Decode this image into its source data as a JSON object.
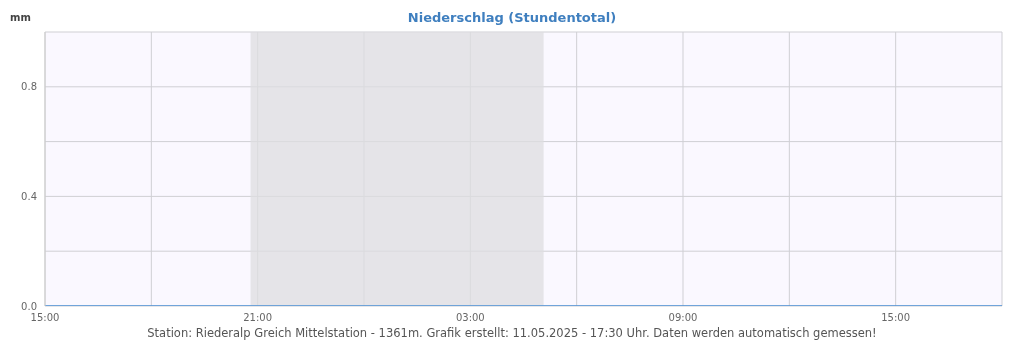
{
  "chart_data": {
    "type": "line",
    "title": "Niederschlag (Stundentotal)",
    "ylabel": "mm",
    "x": [
      "2025-05-10T15:00",
      "2025-05-10T16:00",
      "2025-05-10T17:00",
      "2025-05-10T18:00",
      "2025-05-10T19:00",
      "2025-05-10T20:00",
      "2025-05-10T21:00",
      "2025-05-10T22:00",
      "2025-05-10T23:00",
      "2025-05-11T00:00",
      "2025-05-11T01:00",
      "2025-05-11T02:00",
      "2025-05-11T03:00",
      "2025-05-11T04:00",
      "2025-05-11T05:00",
      "2025-05-11T06:00",
      "2025-05-11T07:00",
      "2025-05-11T08:00",
      "2025-05-11T09:00",
      "2025-05-11T10:00",
      "2025-05-11T11:00",
      "2025-05-11T12:00",
      "2025-05-11T13:00",
      "2025-05-11T14:00",
      "2025-05-11T15:00",
      "2025-05-11T16:00",
      "2025-05-11T17:00",
      "2025-05-11T18:00"
    ],
    "series": [
      {
        "color": "#4a8fd4",
        "values": [
          0,
          0,
          0,
          0,
          0,
          0,
          0,
          0,
          0,
          0,
          0,
          0,
          0,
          0,
          0,
          0,
          0,
          0,
          0,
          0,
          0,
          0,
          0,
          0,
          0,
          0,
          0,
          0
        ]
      }
    ],
    "xlim": [
      "2025-05-10T15:00",
      "2025-05-11T18:00"
    ],
    "xticks": [
      {
        "value": "2025-05-10T15:00",
        "label": "15:00"
      },
      {
        "value": "2025-05-10T18:00",
        "label": null
      },
      {
        "value": "2025-05-10T21:00",
        "label": "21:00"
      },
      {
        "value": "2025-05-11T00:00",
        "label": null
      },
      {
        "value": "2025-05-11T03:00",
        "label": "03:00"
      },
      {
        "value": "2025-05-11T06:00",
        "label": null
      },
      {
        "value": "2025-05-11T09:00",
        "label": "09:00"
      },
      {
        "value": "2025-05-11T12:00",
        "label": null
      },
      {
        "value": "2025-05-11T15:00",
        "label": "15:00"
      }
    ],
    "ylim": [
      0,
      1
    ],
    "yticks": [
      {
        "value": 0,
        "label": "0.0"
      },
      {
        "value": 0.2,
        "label": null
      },
      {
        "value": 0.4,
        "label": "0.4"
      },
      {
        "value": 0.6,
        "label": null
      },
      {
        "value": 0.8,
        "label": "0.8"
      },
      {
        "value": 1,
        "label": null
      }
    ],
    "bands": [
      {
        "axis": "x",
        "from": "2025-05-10T20:48",
        "to": "2025-05-11T05:04",
        "color": "#dddde0"
      }
    ],
    "grid": true,
    "marker": "none",
    "line_style": "solid",
    "annotations": [
      "Station: Riederalp Greich Mittelstation - 1361m. Grafik erstellt: 11.05.2025 - 17:30 Uhr. Daten werden automatisch gemessen!"
    ]
  }
}
